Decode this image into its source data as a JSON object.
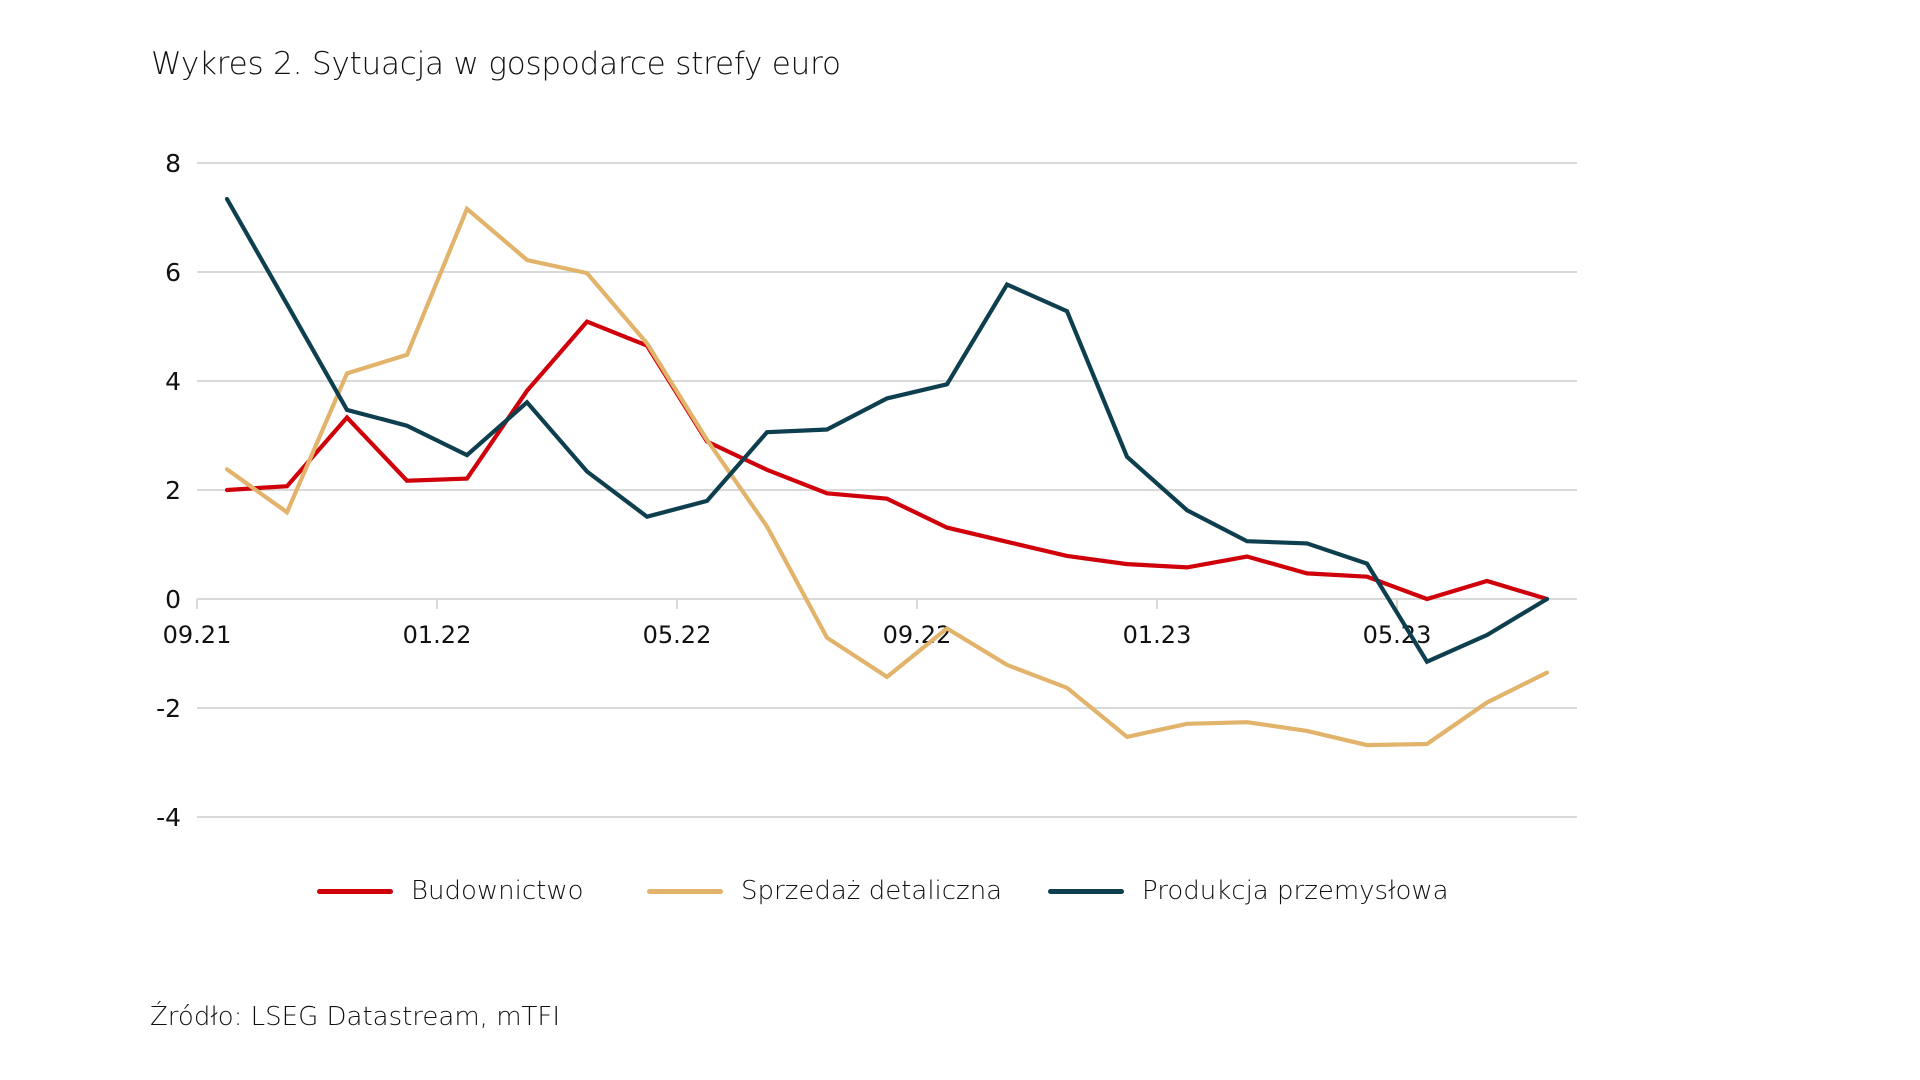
{
  "title": "Wykres 2. Sytuacja w gospodarce strefy euro",
  "source": "Źródło: LSEG Datastream, mTFI",
  "chart_data": {
    "type": "line",
    "title": "Wykres 2. Sytuacja w gospodarce strefy euro",
    "xlabel": "",
    "ylabel": "",
    "ylim": [
      -4,
      8
    ],
    "yticks": [
      -4,
      -2,
      0,
      2,
      4,
      6,
      8
    ],
    "ytick_labels": [
      "-4",
      "-2",
      "0",
      "2",
      "4",
      "6",
      "8"
    ],
    "x": [
      "09.21",
      "10.21",
      "11.21",
      "12.21",
      "01.22",
      "02.22",
      "03.22",
      "04.22",
      "05.22",
      "06.22",
      "07.22",
      "08.22",
      "09.22",
      "10.22",
      "11.22",
      "12.22",
      "01.23",
      "02.23",
      "03.23",
      "04.23",
      "05.23",
      "06.23",
      "07.23"
    ],
    "xtick_labels": [
      "09.21",
      "01.22",
      "05.22",
      "09.22",
      "01.23",
      "05.23"
    ],
    "grid": true,
    "legend_position": "bottom",
    "series": [
      {
        "name": "Budownictwo",
        "color": "#d0000b",
        "values": [
          2.0,
          2.07,
          3.33,
          2.17,
          2.21,
          3.82,
          5.09,
          4.65,
          2.89,
          2.37,
          1.94,
          1.84,
          1.31,
          1.05,
          0.79,
          0.64,
          0.58,
          0.78,
          0.47,
          0.41,
          0.0,
          0.33,
          0.0
        ]
      },
      {
        "name": "Sprzedaż detaliczna",
        "color": "#e2b36b",
        "values": [
          2.38,
          1.59,
          4.14,
          4.48,
          7.16,
          6.22,
          5.98,
          4.69,
          2.92,
          1.33,
          -0.71,
          -1.43,
          -0.54,
          -1.21,
          -1.63,
          -2.53,
          -2.29,
          -2.26,
          -2.42,
          -2.68,
          -2.66,
          -1.9,
          -1.35
        ]
      },
      {
        "name": "Produkcja przemysłowa",
        "color": "#0e3f4f",
        "values": [
          7.34,
          5.41,
          3.47,
          3.18,
          2.64,
          3.61,
          2.34,
          1.51,
          1.8,
          3.06,
          3.11,
          3.68,
          3.94,
          5.77,
          5.28,
          2.61,
          1.63,
          1.06,
          1.02,
          0.65,
          -1.15,
          -0.66,
          0.0
        ]
      }
    ]
  }
}
